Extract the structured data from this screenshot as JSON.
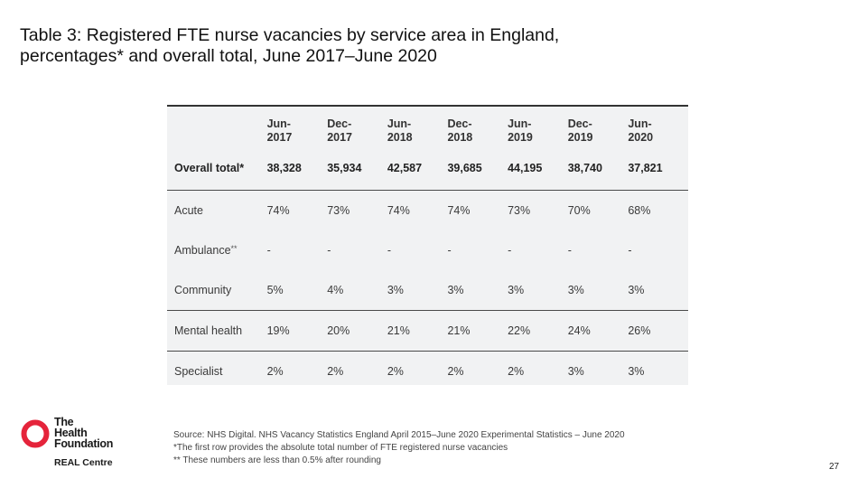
{
  "title_line1": "Table 3: Registered FTE nurse vacancies by service area in England,",
  "title_line2": "percentages* and overall total, June 2017–June 2020",
  "table": {
    "headers": [
      {
        "l1": "Jun-",
        "l2": "2017"
      },
      {
        "l1": "Dec-",
        "l2": "2017"
      },
      {
        "l1": "Jun-",
        "l2": "2018"
      },
      {
        "l1": "Dec-",
        "l2": "2018"
      },
      {
        "l1": "Jun-",
        "l2": "2019"
      },
      {
        "l1": "Dec-",
        "l2": "2019"
      },
      {
        "l1": "Jun-",
        "l2": "2020"
      }
    ],
    "total_row": {
      "label": "Overall total*",
      "values": [
        "38,328",
        "35,934",
        "42,587",
        "39,685",
        "44,195",
        "38,740",
        "37,821"
      ]
    },
    "rows": [
      {
        "label": "Acute",
        "values": [
          "74%",
          "73%",
          "74%",
          "74%",
          "73%",
          "70%",
          "68%"
        ]
      },
      {
        "label": "Ambulance",
        "sup": "**",
        "values": [
          "-",
          "-",
          "-",
          "-",
          "-",
          "-",
          "-"
        ]
      },
      {
        "label": "Community",
        "values": [
          "5%",
          "4%",
          "3%",
          "3%",
          "3%",
          "3%",
          "3%"
        ]
      },
      {
        "label": "Mental health",
        "values": [
          "19%",
          "20%",
          "21%",
          "21%",
          "22%",
          "24%",
          "26%"
        ]
      },
      {
        "label": "Specialist",
        "values": [
          "2%",
          "2%",
          "2%",
          "2%",
          "2%",
          "3%",
          "3%"
        ]
      }
    ]
  },
  "source": {
    "line1": "Source: NHS Digital. NHS Vacancy Statistics England April 2015–June 2020 Experimental Statistics – June 2020",
    "line2": "*The first row provides the absolute total number of FTE registered nurse vacancies",
    "line3": "** These numbers are less than 0.5% after rounding"
  },
  "logo": {
    "line1": "The",
    "line2": "Health",
    "line3": "Foundation",
    "sub": "REAL Centre",
    "color": "#e5243b"
  },
  "page_number": "27"
}
